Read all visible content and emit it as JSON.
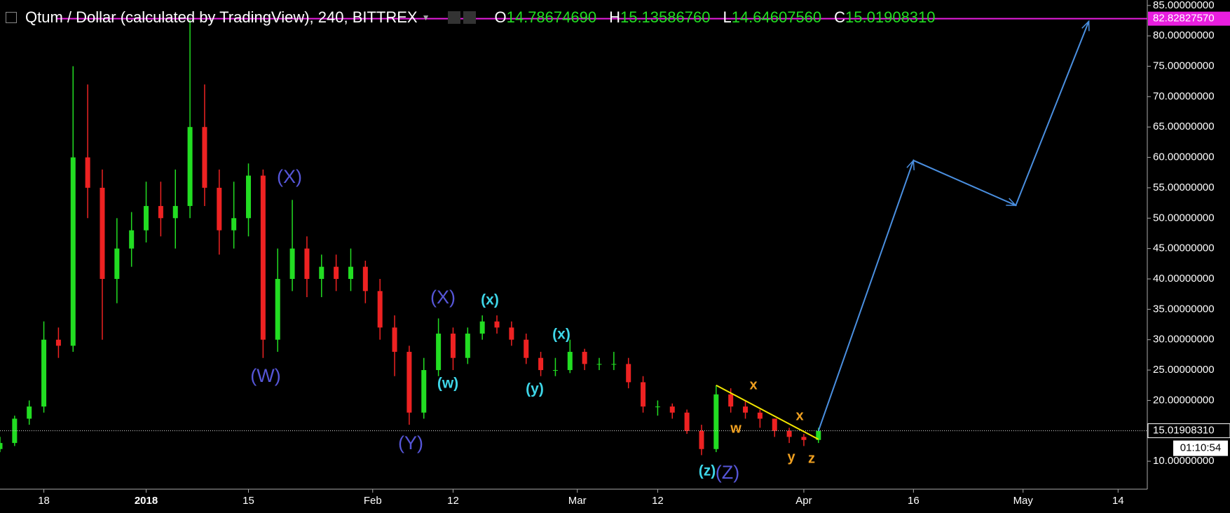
{
  "chart_data": {
    "type": "candlestick",
    "title": "Qtum / Dollar (calculated by TradingView), 240, BITTREX",
    "ohlc_header": [
      {
        "label": "O",
        "value": "14.78674690"
      },
      {
        "label": "H",
        "value": "15.13586760"
      },
      {
        "label": "L",
        "value": "14.64607560"
      },
      {
        "label": "C",
        "value": "15.01908310"
      }
    ],
    "x": [
      "2017-12-12",
      "2017-12-14",
      "2017-12-16",
      "2017-12-18",
      "2017-12-20",
      "2017-12-22",
      "2017-12-24",
      "2017-12-26",
      "2017-12-28",
      "2017-12-30",
      "2018-01-01",
      "2018-01-03",
      "2018-01-05",
      "2018-01-07",
      "2018-01-09",
      "2018-01-11",
      "2018-01-13",
      "2018-01-15",
      "2018-01-17",
      "2018-01-19",
      "2018-01-21",
      "2018-01-23",
      "2018-01-25",
      "2018-01-27",
      "2018-01-29",
      "2018-01-31",
      "2018-02-02",
      "2018-02-04",
      "2018-02-06",
      "2018-02-08",
      "2018-02-10",
      "2018-02-12",
      "2018-02-14",
      "2018-02-16",
      "2018-02-18",
      "2018-02-20",
      "2018-02-22",
      "2018-02-24",
      "2018-02-26",
      "2018-02-28",
      "2018-03-02",
      "2018-03-04",
      "2018-03-06",
      "2018-03-08",
      "2018-03-10",
      "2018-03-12",
      "2018-03-14",
      "2018-03-16",
      "2018-03-18",
      "2018-03-20",
      "2018-03-22",
      "2018-03-24",
      "2018-03-26",
      "2018-03-28",
      "2018-03-30",
      "2018-04-01",
      "2018-04-03"
    ],
    "open": [
      12,
      13,
      17,
      19,
      30,
      29,
      60,
      55,
      40,
      45,
      48,
      52,
      50,
      52,
      65,
      55,
      48,
      50,
      57,
      30,
      40,
      45,
      40,
      42,
      40,
      42,
      38,
      32,
      28,
      18,
      25,
      31,
      27,
      31,
      33,
      32,
      30,
      27,
      25,
      25,
      28,
      26,
      26,
      26,
      23,
      19,
      19,
      18,
      15,
      12,
      21,
      19,
      18,
      17,
      15,
      14,
      13.5
    ],
    "high": [
      14,
      17.5,
      20,
      33,
      32,
      75,
      72,
      58,
      50,
      51,
      56,
      56,
      58,
      83,
      72,
      58,
      56,
      59,
      58,
      45,
      53,
      47,
      44,
      44,
      45,
      43,
      40,
      34,
      29,
      27,
      33.5,
      32,
      32,
      34,
      34,
      33,
      31,
      28,
      27,
      30,
      28.5,
      27,
      28,
      27,
      24,
      20,
      19.5,
      18.5,
      16,
      22.5,
      22,
      20,
      18.5,
      17,
      15.5,
      14.5,
      15.5
    ],
    "low": [
      11.5,
      12.5,
      16,
      18,
      27,
      28,
      50,
      30,
      36,
      42,
      46,
      47,
      45,
      50,
      52,
      44,
      45,
      47,
      27,
      28,
      38,
      37,
      37,
      38,
      38,
      36,
      30,
      24,
      16,
      17,
      24,
      25,
      26,
      30,
      31,
      29,
      26,
      24,
      24,
      24.5,
      25,
      25,
      25,
      22,
      18,
      17.5,
      17,
      14.5,
      11,
      11.5,
      18,
      17,
      15.5,
      14,
      13,
      12.5,
      13
    ],
    "close": [
      13,
      17,
      19,
      30,
      29,
      60,
      55,
      40,
      45,
      48,
      52,
      50,
      52,
      65,
      55,
      48,
      50,
      57,
      30,
      40,
      45,
      40,
      42,
      40,
      42,
      38,
      32,
      28,
      18,
      25,
      31,
      27,
      31,
      33,
      32,
      30,
      27,
      25,
      25,
      28,
      26,
      26,
      26,
      23,
      19,
      19,
      18,
      15,
      12,
      21,
      19,
      18,
      17,
      15,
      14,
      13.5,
      15
    ],
    "up_color": "#22dd22",
    "down_color": "#ee2222",
    "xlim": [
      "2017-12-12",
      "2018-05-18"
    ],
    "xticks": [
      {
        "value": "2017-12-18",
        "label": "18"
      },
      {
        "value": "2018-01-01",
        "label": "2018"
      },
      {
        "value": "2018-01-15",
        "label": "15"
      },
      {
        "value": "2018-02-01",
        "label": "Feb"
      },
      {
        "value": "2018-02-12",
        "label": "12"
      },
      {
        "value": "2018-03-01",
        "label": "Mar"
      },
      {
        "value": "2018-03-12",
        "label": "12"
      },
      {
        "value": "2018-04-01",
        "label": "Apr"
      },
      {
        "value": "2018-04-16",
        "label": "16"
      },
      {
        "value": "2018-05-01",
        "label": "May"
      },
      {
        "value": "2018-05-14",
        "label": "14"
      }
    ],
    "ylim": [
      5.4,
      85.9
    ],
    "yticks": [
      {
        "value": 10,
        "label": "10.00000000"
      },
      {
        "value": 15,
        "label": "15.00000000"
      },
      {
        "value": 20,
        "label": "20.00000000"
      },
      {
        "value": 25,
        "label": "25.00000000"
      },
      {
        "value": 30,
        "label": "30.00000000"
      },
      {
        "value": 35,
        "label": "35.00000000"
      },
      {
        "value": 40,
        "label": "40.00000000"
      },
      {
        "value": 45,
        "label": "45.00000000"
      },
      {
        "value": 50,
        "label": "50.00000000"
      },
      {
        "value": 55,
        "label": "55.00000000"
      },
      {
        "value": 60,
        "label": "60.00000000"
      },
      {
        "value": 65,
        "label": "65.00000000"
      },
      {
        "value": 70,
        "label": "70.00000000"
      },
      {
        "value": 75,
        "label": "75.00000000"
      },
      {
        "value": 80,
        "label": "80.00000000"
      },
      {
        "value": 85,
        "label": "85.00000000"
      }
    ],
    "last_price": {
      "value": 15.0190831,
      "label": "15.01908310"
    },
    "countdown": "01:10:54",
    "alert_line": {
      "value": 82.8282757,
      "label": "82.82827570",
      "color": "#e91ee0"
    },
    "trendline": {
      "x": [
        "2018-03-20",
        "2018-04-03"
      ],
      "values": [
        22.5,
        13.6
      ],
      "color": "#f2e600"
    },
    "projection": {
      "x": [
        "2018-04-03",
        "2018-04-16",
        "2018-04-30",
        "2018-05-10"
      ],
      "values": [
        15,
        59.5,
        52.1,
        82.4
      ],
      "color": "#4a8fe0"
    },
    "annotations": [
      {
        "text": "(X)",
        "color": "#5656d8"
      },
      {
        "text": "(W)",
        "color": "#5656d8"
      },
      {
        "text": "(X)",
        "color": "#5656d8"
      },
      {
        "text": "(Y)",
        "color": "#5656d8"
      },
      {
        "text": "(Z)",
        "color": "#5656d8"
      },
      {
        "text": "(x)",
        "color": "#3ed6e8"
      },
      {
        "text": "(w)",
        "color": "#3ed6e8"
      },
      {
        "text": "(y)",
        "color": "#3ed6e8"
      },
      {
        "text": "(x)",
        "color": "#3ed6e8"
      },
      {
        "text": "(z)",
        "color": "#3ed6e8"
      },
      {
        "text": "x",
        "color": "#f0a020"
      },
      {
        "text": "w",
        "color": "#f0a020"
      },
      {
        "text": "x",
        "color": "#f0a020"
      },
      {
        "text": "y",
        "color": "#f0a020"
      },
      {
        "text": "z",
        "color": "#f0a020"
      }
    ]
  }
}
